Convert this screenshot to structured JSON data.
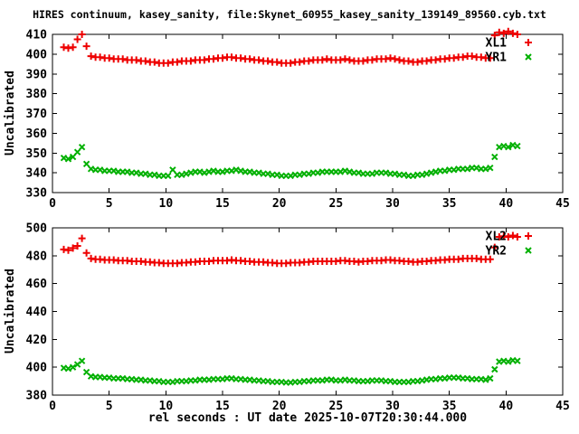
{
  "title": "HIRES continuum, kasey_sanity, file:Skynet_60955_kasey_sanity_139149_89560.cyb.txt",
  "xlabel": "rel seconds : UT date 2025-10-07T20:30:44.000",
  "colors": {
    "red_series": "#ee0000",
    "green_series": "#00b000",
    "axis": "#000000",
    "background": "#ffffff"
  },
  "chart_data": [
    {
      "type": "scatter",
      "ylabel": "Uncalibrated",
      "xlim": [
        0,
        45
      ],
      "ylim": [
        330,
        410
      ],
      "xticks": [
        0,
        5,
        10,
        15,
        20,
        25,
        30,
        35,
        40,
        45
      ],
      "yticks": [
        330,
        340,
        350,
        360,
        370,
        380,
        390,
        400,
        410
      ],
      "grid": false,
      "legend_position": "top-right-inside",
      "x_start": 1.0,
      "x_step": 0.4,
      "series": [
        {
          "name": "XL1",
          "marker": "plus",
          "color": "#ee0000",
          "y": [
            403.5,
            403,
            403.5,
            407.5,
            410,
            404,
            399,
            398.5,
            398.5,
            398,
            398,
            397.5,
            397.5,
            397.5,
            397,
            397,
            397,
            396.5,
            396.5,
            396,
            396,
            395.5,
            395.5,
            395.5,
            396,
            396,
            396.5,
            396.5,
            396.5,
            397,
            397,
            397,
            397.5,
            397.5,
            398,
            398,
            398.5,
            398.5,
            398,
            398,
            397.5,
            397.5,
            397,
            397,
            396.5,
            396.5,
            396,
            396,
            395.5,
            395.5,
            395.5,
            396,
            396,
            396.5,
            396.5,
            397,
            397,
            397,
            397.5,
            397,
            397,
            397,
            397.5,
            397,
            396.5,
            396.5,
            396.5,
            397,
            397,
            397.5,
            397.5,
            397.5,
            398,
            397.5,
            397,
            396.5,
            396.5,
            396,
            396,
            396.5,
            396.5,
            397,
            397,
            397.5,
            397.5,
            398,
            398,
            398.5,
            398.5,
            399,
            399,
            398.5,
            398.5,
            398,
            398,
            409.5,
            411,
            410.5,
            411.5,
            410.5,
            410
          ]
        },
        {
          "name": "YR1",
          "marker": "cross",
          "color": "#00b000",
          "y": [
            347.5,
            347,
            348,
            350.5,
            353,
            344.5,
            342,
            341.5,
            341.5,
            341,
            341,
            341,
            340.5,
            340.5,
            340.5,
            340,
            340,
            339.5,
            339.5,
            339,
            339,
            338.5,
            338.5,
            338.5,
            341.5,
            339,
            339,
            339.5,
            340,
            340.5,
            340.5,
            340,
            340.5,
            341,
            340.5,
            340.5,
            341,
            341,
            341.5,
            341,
            340.5,
            340.5,
            340,
            340,
            339.5,
            339.5,
            339,
            339,
            338.5,
            338.5,
            338.5,
            339,
            339,
            339.5,
            339.5,
            340,
            340,
            340.5,
            340.5,
            340.5,
            340.5,
            340.5,
            341,
            340.5,
            340,
            340,
            339.5,
            339.5,
            339.5,
            340,
            340,
            340,
            339.5,
            339.5,
            339,
            339,
            338.5,
            338.5,
            339,
            339,
            339.5,
            340,
            340.5,
            341,
            341,
            341.5,
            341.5,
            342,
            342,
            342,
            342.5,
            342.5,
            342,
            342,
            342.5,
            348,
            353,
            353.5,
            353,
            354,
            353.5
          ]
        }
      ]
    },
    {
      "type": "scatter",
      "ylabel": "Uncalibrated",
      "xlim": [
        0,
        45
      ],
      "ylim": [
        380,
        500
      ],
      "xticks": [
        0,
        5,
        10,
        15,
        20,
        25,
        30,
        35,
        40,
        45
      ],
      "yticks": [
        380,
        400,
        420,
        440,
        460,
        480,
        500
      ],
      "grid": false,
      "legend_position": "top-right-inside",
      "x_start": 1.0,
      "x_step": 0.4,
      "series": [
        {
          "name": "XL2",
          "marker": "plus",
          "color": "#ee0000",
          "y": [
            484.5,
            484,
            485.5,
            487,
            492.5,
            482,
            478,
            477.5,
            477.5,
            477,
            477,
            477,
            476.5,
            476.5,
            476.5,
            476,
            476,
            476,
            475.5,
            475.5,
            475,
            475,
            474.5,
            474.5,
            474.5,
            474.5,
            475,
            475,
            475.5,
            475.5,
            476,
            476,
            476,
            476.5,
            476.5,
            476.5,
            476.5,
            477,
            476.5,
            476.5,
            476,
            476,
            475.5,
            475.5,
            475.5,
            475,
            475,
            474.5,
            474.5,
            474.5,
            475,
            475,
            475,
            475.5,
            475.5,
            476,
            476,
            476,
            476,
            476,
            476,
            476.5,
            476.5,
            476,
            476,
            475.5,
            476,
            476,
            476.5,
            476.5,
            476.5,
            477,
            477,
            476.5,
            476.5,
            476,
            476,
            475.5,
            475.5,
            476,
            476,
            476.5,
            476.5,
            477,
            477,
            477.5,
            477.5,
            477.5,
            478,
            478,
            478,
            478,
            477.5,
            477.5,
            477.5,
            486,
            493.5,
            494,
            493.5,
            494.5,
            493.5
          ]
        },
        {
          "name": "YR2",
          "marker": "cross",
          "color": "#00b000",
          "y": [
            399.5,
            399,
            400,
            402,
            404.5,
            396.5,
            393.5,
            393,
            393,
            392.5,
            392.5,
            392,
            392,
            392,
            391.5,
            391.5,
            391,
            391,
            390.5,
            390.5,
            390,
            390,
            389.5,
            389.5,
            389.5,
            390,
            390,
            390,
            390.5,
            390.5,
            391,
            391,
            391,
            391.5,
            391.5,
            391.5,
            392,
            392,
            391.5,
            391.5,
            391,
            391,
            390.5,
            390.5,
            390,
            390,
            389.5,
            389.5,
            389.5,
            389,
            389,
            389.5,
            389.5,
            390,
            390,
            390.5,
            390.5,
            390.5,
            391,
            391,
            390.5,
            390.5,
            391,
            390.5,
            390.5,
            390,
            390,
            390,
            390.5,
            390.5,
            390.5,
            390,
            390,
            389.5,
            389.5,
            389.5,
            389.5,
            390,
            390,
            390.5,
            391,
            391.5,
            391.5,
            392,
            392,
            392.5,
            392.5,
            392.5,
            392,
            392,
            391.5,
            391.5,
            391.5,
            391,
            392,
            398.5,
            404,
            404.5,
            404,
            405,
            404.5
          ]
        }
      ]
    }
  ]
}
